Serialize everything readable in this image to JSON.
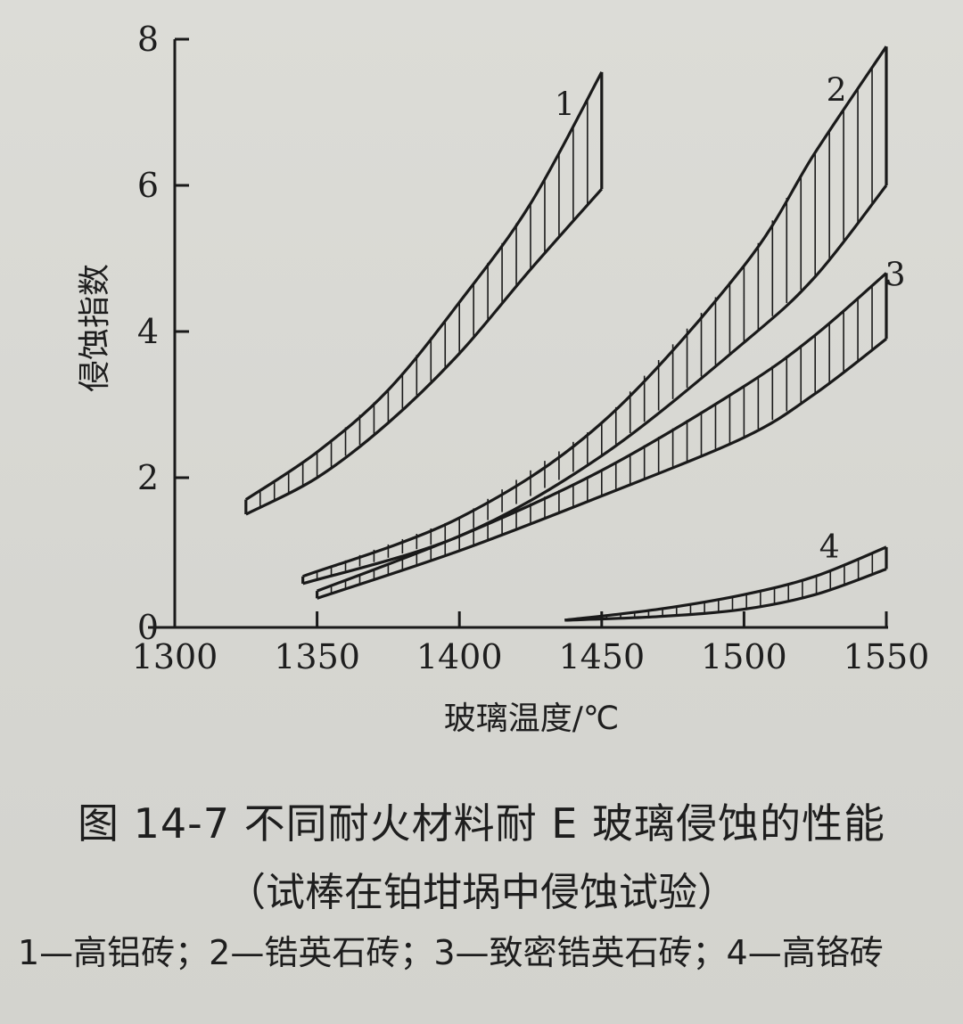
{
  "figure": {
    "caption_title": "图 14-7   不同耐火材料耐 E 玻璃侵蚀的性能",
    "caption_subtitle": "（试棒在铂坩埚中侵蚀试验）",
    "caption_legend": "1—高铝砖；2—锆英石砖；3—致密锆英石砖；4—高铬砖"
  },
  "chart_data": {
    "type": "area",
    "xlabel": "玻璃温度/℃",
    "ylabel": "侵蚀指数",
    "xlim": [
      1300,
      1550
    ],
    "ylim": [
      0,
      8
    ],
    "x_ticks": [
      1300,
      1350,
      1400,
      1450,
      1500,
      1550
    ],
    "y_ticks": [
      0,
      2,
      4,
      6,
      8
    ],
    "grid": false,
    "series": [
      {
        "name": "1",
        "x": [
          1325,
          1350,
          1375,
          1400,
          1425,
          1450
        ],
        "y_upper": [
          1.7,
          2.35,
          3.2,
          4.4,
          5.75,
          7.55
        ],
        "y_lower": [
          1.5,
          2.0,
          2.75,
          3.7,
          4.85,
          5.95
        ]
      },
      {
        "name": "2",
        "x": [
          1345,
          1400,
          1450,
          1500,
          1525,
          1550
        ],
        "y_upper": [
          0.65,
          1.45,
          2.75,
          4.9,
          6.45,
          7.9
        ],
        "y_lower": [
          0.55,
          1.2,
          2.3,
          3.85,
          4.75,
          6.0
        ]
      },
      {
        "name": "3",
        "x": [
          1350,
          1400,
          1450,
          1500,
          1525,
          1550
        ],
        "y_upper": [
          0.45,
          1.2,
          2.1,
          3.25,
          3.95,
          4.8
        ],
        "y_lower": [
          0.35,
          1.0,
          1.75,
          2.55,
          3.15,
          3.9
        ]
      },
      {
        "name": "4",
        "x": [
          1437,
          1470,
          1500,
          1525,
          1550
        ],
        "y_upper": [
          0.05,
          0.2,
          0.4,
          0.65,
          1.05
        ],
        "y_lower": [
          0.05,
          0.1,
          0.2,
          0.4,
          0.75
        ]
      }
    ]
  }
}
